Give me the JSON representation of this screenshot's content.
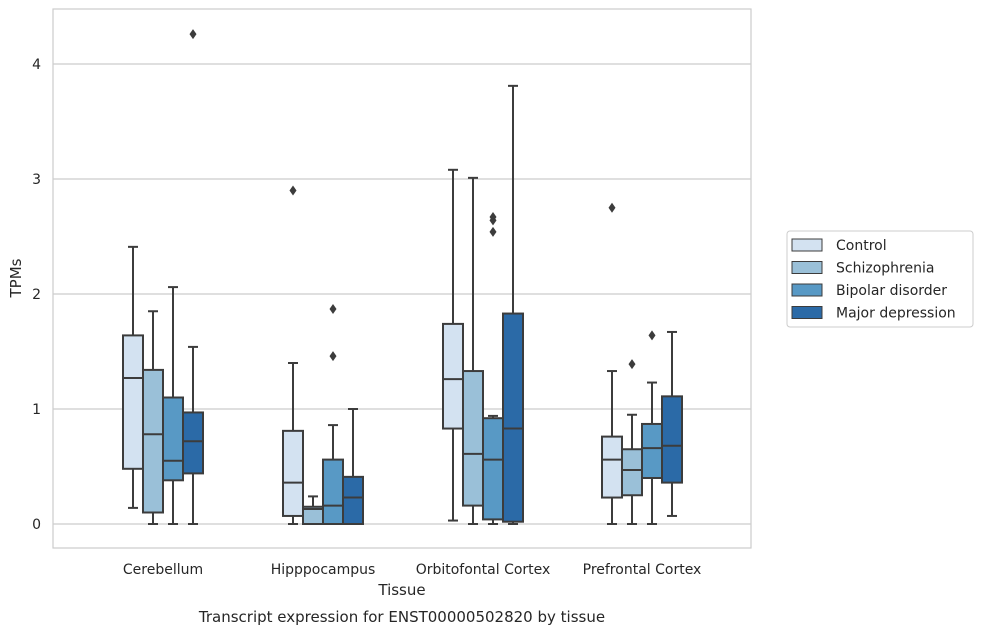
{
  "chart_data": {
    "type": "boxplot",
    "title": "Transcript expression for ENST00000502820 by tissue",
    "xlabel": "Tissue",
    "ylabel": "TPMs",
    "ylim": [
      -0.2,
      4.5
    ],
    "yticks": [
      0,
      1,
      2,
      3,
      4
    ],
    "grid": "horizontal",
    "legend_position": "right",
    "categories": [
      "Cerebellum",
      "Hipppocampus",
      "Orbitofontal Cortex",
      "Prefrontal Cortex"
    ],
    "series": [
      {
        "name": "Control",
        "color": "#d3e2f1",
        "boxes": [
          {
            "whislo": 0.14,
            "q1": 0.48,
            "med": 1.27,
            "q3": 1.64,
            "whishi": 2.41,
            "fliers": []
          },
          {
            "whislo": 0.0,
            "q1": 0.07,
            "med": 0.36,
            "q3": 0.81,
            "whishi": 1.4,
            "fliers": [
              2.9
            ]
          },
          {
            "whislo": 0.03,
            "q1": 0.83,
            "med": 1.26,
            "q3": 1.74,
            "whishi": 3.08,
            "fliers": []
          },
          {
            "whislo": 0.0,
            "q1": 0.23,
            "med": 0.56,
            "q3": 0.76,
            "whishi": 1.33,
            "fliers": [
              2.75
            ]
          }
        ]
      },
      {
        "name": "Schizophrenia",
        "color": "#9ac0d8",
        "boxes": [
          {
            "whislo": 0.0,
            "q1": 0.1,
            "med": 0.78,
            "q3": 1.34,
            "whishi": 1.85,
            "fliers": []
          },
          {
            "whislo": 0.0,
            "q1": 0.0,
            "med": 0.13,
            "q3": 0.15,
            "whishi": 0.24,
            "fliers": []
          },
          {
            "whislo": 0.0,
            "q1": 0.16,
            "med": 0.61,
            "q3": 1.33,
            "whishi": 3.01,
            "fliers": []
          },
          {
            "whislo": 0.0,
            "q1": 0.25,
            "med": 0.47,
            "q3": 0.65,
            "whishi": 0.95,
            "fliers": [
              1.39
            ]
          }
        ]
      },
      {
        "name": "Bipolar disorder",
        "color": "#5899c5",
        "boxes": [
          {
            "whislo": 0.0,
            "q1": 0.38,
            "med": 0.55,
            "q3": 1.1,
            "whishi": 2.06,
            "fliers": []
          },
          {
            "whislo": 0.0,
            "q1": 0.0,
            "med": 0.16,
            "q3": 0.56,
            "whishi": 0.86,
            "fliers": [
              1.46,
              1.87
            ]
          },
          {
            "whislo": 0.0,
            "q1": 0.04,
            "med": 0.56,
            "q3": 0.92,
            "whishi": 0.94,
            "fliers": [
              2.54,
              2.64,
              2.67
            ]
          },
          {
            "whislo": 0.0,
            "q1": 0.4,
            "med": 0.66,
            "q3": 0.87,
            "whishi": 1.23,
            "fliers": [
              1.64
            ]
          }
        ]
      },
      {
        "name": "Major depression",
        "color": "#2b6aa7",
        "boxes": [
          {
            "whislo": 0.0,
            "q1": 0.44,
            "med": 0.72,
            "q3": 0.97,
            "whishi": 1.54,
            "fliers": [
              4.26
            ]
          },
          {
            "whislo": 0.0,
            "q1": 0.0,
            "med": 0.23,
            "q3": 0.41,
            "whishi": 1.0,
            "fliers": []
          },
          {
            "whislo": 0.0,
            "q1": 0.02,
            "med": 0.83,
            "q3": 1.83,
            "whishi": 3.81,
            "fliers": []
          },
          {
            "whislo": 0.07,
            "q1": 0.36,
            "med": 0.68,
            "q3": 1.11,
            "whishi": 1.67,
            "fliers": []
          }
        ]
      }
    ]
  }
}
